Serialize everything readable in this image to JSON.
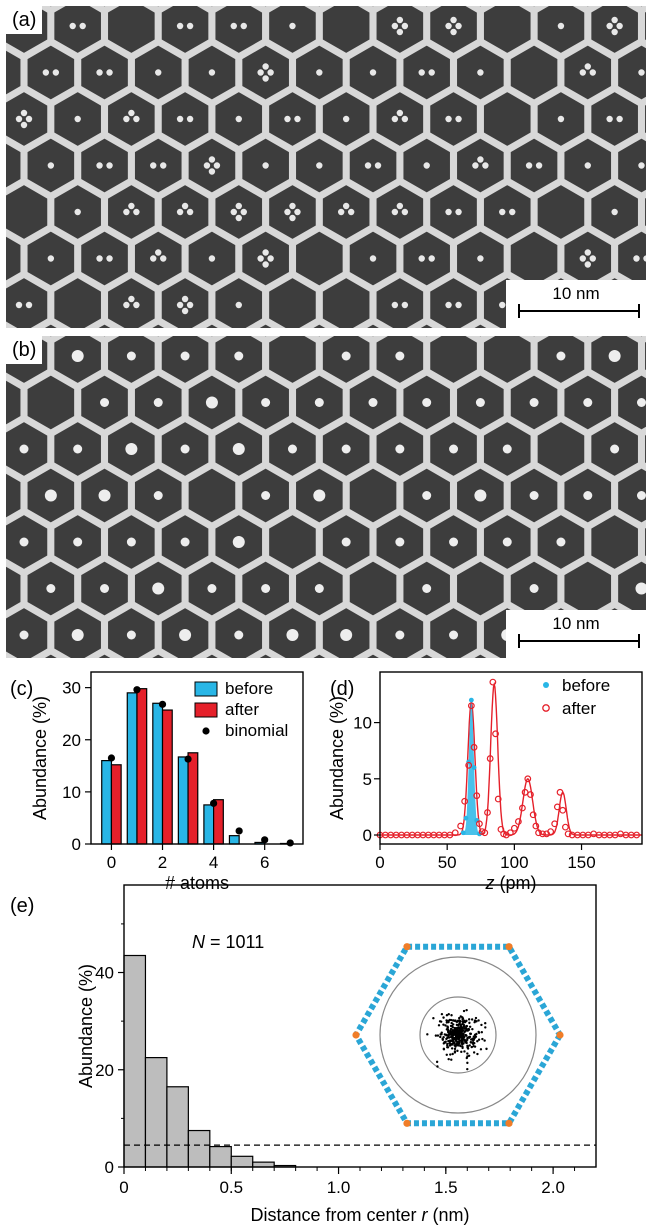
{
  "panels": {
    "a": {
      "label": "(a)",
      "scale_label": "10 nm"
    },
    "b": {
      "label": "(b)",
      "scale_label": "10 nm"
    },
    "c": {
      "label": "(c)"
    },
    "d": {
      "label": "(d)"
    },
    "e": {
      "label": "(e)",
      "annotation": "N = 1011"
    }
  },
  "colors": {
    "before": "#29b6e6",
    "after": "#e5202a",
    "binomial": "#000000",
    "histogram": "#bdbdbd",
    "fit_d": "#e5202a"
  },
  "chart_data": [
    {
      "id": "c",
      "type": "bar",
      "xlabel": "# atoms",
      "ylabel": "Abundance (%)",
      "xlim": [
        -0.8,
        7.5
      ],
      "ylim": [
        0,
        33
      ],
      "xticks": [
        0,
        2,
        4,
        6
      ],
      "yticks": [
        0,
        10,
        20,
        30
      ],
      "categories": [
        0,
        1,
        2,
        3,
        4,
        5,
        6,
        7
      ],
      "series": [
        {
          "name": "before",
          "values": [
            16.0,
            29.0,
            27.0,
            16.7,
            7.5,
            1.6,
            0.3,
            0.1
          ]
        },
        {
          "name": "after",
          "values": [
            15.2,
            29.8,
            25.7,
            17.5,
            8.5,
            0.0,
            0.0,
            0.0
          ]
        }
      ],
      "points": {
        "name": "binomial",
        "x": [
          0,
          1,
          2,
          3,
          4,
          5,
          6,
          7
        ],
        "y": [
          16.5,
          29.6,
          26.8,
          16.3,
          7.8,
          2.5,
          0.8,
          0.2
        ]
      },
      "legend": "top-right"
    },
    {
      "id": "d",
      "type": "scatter",
      "xlabel": "z (pm)",
      "ylabel": "Abundance (%)",
      "xlim": [
        0,
        195
      ],
      "ylim": [
        -0.8,
        14.5
      ],
      "xticks": [
        0,
        50,
        100,
        150
      ],
      "yticks": [
        0,
        5,
        10
      ],
      "series": [
        {
          "name": "before",
          "x": [
            62,
            64,
            66,
            68,
            70,
            72,
            74
          ],
          "y": [
            0.2,
            1.5,
            6.5,
            12.0,
            6.0,
            1.3,
            0.1
          ]
        },
        {
          "name": "after",
          "x": [
            0,
            4,
            8,
            12,
            16,
            20,
            24,
            28,
            32,
            36,
            40,
            44,
            48,
            52,
            56,
            60,
            63,
            66,
            68,
            70,
            72,
            74,
            76,
            78,
            80,
            82,
            84,
            86,
            88,
            90,
            92,
            94,
            97,
            100,
            103,
            106,
            108,
            110,
            112,
            114,
            116,
            118,
            121,
            124,
            127,
            130,
            132,
            134,
            136,
            138,
            140,
            143,
            147,
            151,
            155,
            159,
            163,
            167,
            171,
            175,
            179,
            183,
            187,
            191
          ],
          "y": [
            0,
            0,
            0,
            0,
            0,
            0,
            0,
            0,
            0,
            0,
            0,
            0,
            0,
            0,
            0.2,
            0.8,
            3.0,
            6.2,
            11.5,
            7.8,
            3.5,
            1.0,
            0.3,
            0.2,
            2.0,
            6.8,
            13.6,
            9.0,
            3.2,
            0.5,
            0.1,
            0,
            0.2,
            0.6,
            1.2,
            2.4,
            3.8,
            5.0,
            3.6,
            1.8,
            0.8,
            0.2,
            0.1,
            0.1,
            0.3,
            1.0,
            2.5,
            3.8,
            2.2,
            0.7,
            0.1,
            0,
            0,
            0,
            0,
            0.1,
            0,
            0,
            0,
            0,
            0.1,
            0,
            0,
            0
          ]
        }
      ],
      "fit_peaks": [
        {
          "center": 68,
          "height": 11.8,
          "width": 2.6
        },
        {
          "center": 85,
          "height": 13.4,
          "width": 2.6
        },
        {
          "center": 110,
          "height": 5.0,
          "width": 3.6
        },
        {
          "center": 136,
          "height": 3.8,
          "width": 2.6
        }
      ],
      "legend": "top-right"
    },
    {
      "id": "e",
      "type": "bar",
      "xlabel": "Distance from center r (nm)",
      "ylabel": "Abundance (%)",
      "xlim": [
        0,
        2.2
      ],
      "ylim": [
        0,
        58
      ],
      "xticks": [
        0,
        0.5,
        1.0,
        1.5,
        2.0
      ],
      "xtick_labels": [
        "0",
        "0.5",
        "1.0",
        "1.5",
        "2.0"
      ],
      "yticks": [
        0,
        20,
        40
      ],
      "bin_edges": [
        0,
        0.1,
        0.2,
        0.3,
        0.4,
        0.5,
        0.6,
        0.7,
        0.8
      ],
      "values": [
        43.5,
        22.5,
        16.5,
        7.5,
        4.2,
        2.2,
        1.0,
        0.3
      ],
      "reference_line": 4.5
    }
  ]
}
